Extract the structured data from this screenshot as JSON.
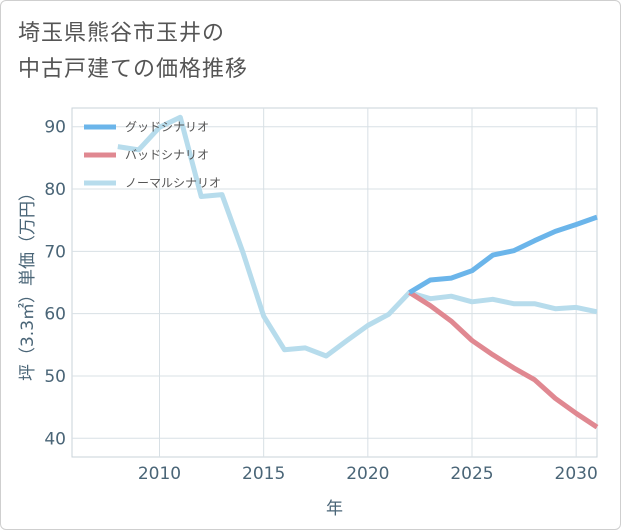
{
  "title": {
    "line1": "埼玉県熊谷市玉井の",
    "line2": "中古戸建ての価格推移"
  },
  "chart_data": {
    "type": "line",
    "xlabel": "年",
    "ylabel": "坪（3.3㎡）単価（万円）",
    "xlim": [
      2005.8,
      2031
    ],
    "ylim": [
      37,
      93
    ],
    "xticks": [
      2010,
      2015,
      2020,
      2025,
      2030
    ],
    "yticks": [
      40,
      50,
      60,
      70,
      80,
      90
    ],
    "legend_position": "top-left",
    "series": [
      {
        "name": "グッドシナリオ",
        "color": "#6bb5ea",
        "x": [
          2022,
          2023,
          2024,
          2025,
          2026,
          2027,
          2028,
          2029,
          2030,
          2031
        ],
        "y": [
          63.4,
          65.4,
          65.7,
          66.9,
          69.4,
          70.1,
          71.7,
          73.2,
          74.3,
          75.5
        ]
      },
      {
        "name": "バッドシナリオ",
        "color": "#e08891",
        "x": [
          2022,
          2023,
          2024,
          2025,
          2026,
          2027,
          2028,
          2029,
          2030,
          2031
        ],
        "y": [
          63.4,
          61.3,
          58.8,
          55.7,
          53.4,
          51.3,
          49.4,
          46.4,
          44.0,
          41.8
        ]
      },
      {
        "name": "ノーマルシナリオ",
        "color": "#b7dcec",
        "x": [
          2008,
          2009,
          2010,
          2011,
          2012,
          2013,
          2014,
          2015,
          2016,
          2017,
          2018,
          2019,
          2020,
          2021,
          2022,
          2023,
          2024,
          2025,
          2026,
          2027,
          2028,
          2029,
          2030,
          2031
        ],
        "y": [
          86.8,
          86.3,
          89.9,
          91.5,
          78.8,
          79.1,
          69.9,
          59.6,
          54.2,
          54.5,
          53.2,
          55.7,
          58.1,
          59.9,
          63.4,
          62.4,
          62.8,
          61.9,
          62.3,
          61.6,
          61.6,
          60.8,
          61.0,
          60.3
        ]
      }
    ]
  }
}
